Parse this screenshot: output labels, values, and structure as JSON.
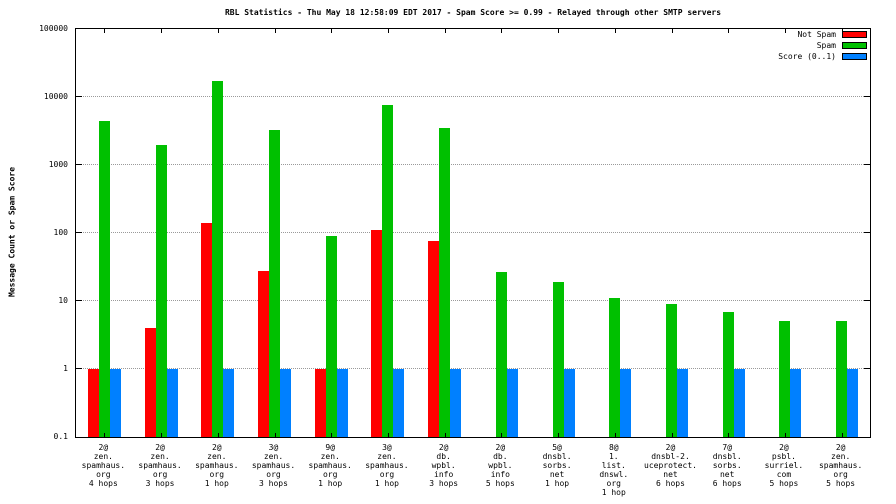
{
  "chart_data": {
    "type": "bar",
    "title": "RBL Statistics - Thu May 18 12:58:09 EDT 2017 - Spam Score >= 0.99 - Relayed through other SMTP servers",
    "xlabel": "",
    "ylabel": "Message Count or Spam Score",
    "y_scale": "log",
    "ylim": [
      0.1,
      100000
    ],
    "y_ticks": [
      0.1,
      1,
      10,
      100,
      1000,
      10000,
      100000
    ],
    "y_tick_labels": [
      "0.1",
      "1",
      "10",
      "100",
      "1000",
      "10000",
      "100000"
    ],
    "grid": "horizontal-dotted",
    "legend_position": "top-right",
    "categories": [
      [
        "2@",
        "zen.",
        "spamhaus.",
        "org",
        "4 hops"
      ],
      [
        "2@",
        "zen.",
        "spamhaus.",
        "org",
        "3 hops"
      ],
      [
        "2@",
        "zen.",
        "spamhaus.",
        "org",
        "1 hop"
      ],
      [
        "3@",
        "zen.",
        "spamhaus.",
        "org",
        "3 hops"
      ],
      [
        "9@",
        "zen.",
        "spamhaus.",
        "org",
        "1 hop"
      ],
      [
        "3@",
        "zen.",
        "spamhaus.",
        "org",
        "1 hop"
      ],
      [
        "2@",
        "db.",
        "wpbl.",
        "info",
        "3 hops"
      ],
      [
        "2@",
        "db.",
        "wpbl.",
        "info",
        "5 hops"
      ],
      [
        "5@",
        "dnsbl.",
        "sorbs.",
        "net",
        "1 hop"
      ],
      [
        "8@",
        "1.",
        "list.",
        "dnswl.",
        "org",
        "1 hop"
      ],
      [
        "2@",
        "dnsbl-2.",
        "uceprotect.",
        "net",
        "6 hops"
      ],
      [
        "7@",
        "dnsbl.",
        "sorbs.",
        "net",
        "6 hops"
      ],
      [
        "2@",
        "psbl.",
        "surriel.",
        "com",
        "5 hops"
      ],
      [
        "2@",
        "zen.",
        "spamhaus.",
        "org",
        "5 hops"
      ]
    ],
    "series": [
      {
        "name": "Not Spam",
        "color": "#ff0000",
        "values": [
          1,
          4,
          140,
          28,
          1,
          110,
          75,
          null,
          null,
          null,
          null,
          null,
          null,
          null
        ]
      },
      {
        "name": "Spam",
        "color": "#00c000",
        "values": [
          4500,
          2000,
          17000,
          3300,
          90,
          7500,
          3500,
          27,
          19,
          11,
          9,
          7,
          5,
          5
        ]
      },
      {
        "name": "Score (0..1)",
        "color": "#0080ff",
        "values": [
          1,
          1,
          1,
          1,
          1,
          1,
          1,
          1,
          1,
          1,
          1,
          1,
          1,
          1
        ]
      }
    ]
  }
}
